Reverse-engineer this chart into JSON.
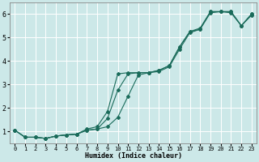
{
  "title": "",
  "xlabel": "Humidex (Indice chaleur)",
  "ylabel": "",
  "bg_color": "#cce8e8",
  "line_color": "#1a6b5a",
  "grid_color": "#ffffff",
  "xlim": [
    -0.5,
    23.5
  ],
  "ylim": [
    0.5,
    6.5
  ],
  "xticks": [
    0,
    1,
    2,
    3,
    4,
    5,
    6,
    7,
    8,
    9,
    10,
    11,
    12,
    13,
    14,
    15,
    16,
    17,
    18,
    19,
    20,
    21,
    22,
    23
  ],
  "yticks": [
    1,
    2,
    3,
    4,
    5,
    6
  ],
  "line1_x": [
    0,
    1,
    2,
    3,
    4,
    5,
    6,
    7,
    8,
    9,
    10,
    11,
    12,
    13,
    14,
    15,
    16,
    17,
    18,
    19,
    20,
    21,
    22,
    23
  ],
  "line1_y": [
    1.05,
    0.75,
    0.75,
    0.7,
    0.8,
    0.85,
    0.88,
    1.05,
    1.1,
    1.2,
    1.6,
    2.5,
    3.4,
    3.5,
    3.55,
    3.75,
    4.5,
    5.2,
    5.35,
    6.05,
    6.1,
    6.05,
    5.5,
    5.95
  ],
  "line2_x": [
    0,
    1,
    2,
    3,
    4,
    5,
    6,
    7,
    8,
    9,
    10,
    11,
    12,
    13,
    14,
    15,
    16,
    17,
    18,
    19,
    20,
    21,
    22,
    23
  ],
  "line2_y": [
    1.05,
    0.75,
    0.75,
    0.7,
    0.8,
    0.85,
    0.88,
    1.05,
    1.1,
    1.55,
    2.75,
    3.45,
    3.5,
    3.5,
    3.6,
    3.8,
    4.6,
    5.25,
    5.35,
    6.1,
    6.1,
    6.1,
    5.5,
    6.0
  ],
  "line3_x": [
    0,
    1,
    2,
    3,
    4,
    5,
    6,
    7,
    8,
    9,
    10,
    11,
    12,
    13,
    14,
    15,
    16,
    17,
    18,
    19,
    20,
    21,
    22,
    23
  ],
  "line3_y": [
    1.05,
    0.75,
    0.75,
    0.7,
    0.8,
    0.85,
    0.88,
    1.1,
    1.2,
    1.85,
    3.45,
    3.5,
    3.5,
    3.5,
    3.6,
    3.8,
    4.6,
    5.25,
    5.4,
    6.1,
    6.1,
    6.1,
    5.5,
    6.0
  ],
  "figsize": [
    3.2,
    2.0
  ],
  "dpi": 100
}
